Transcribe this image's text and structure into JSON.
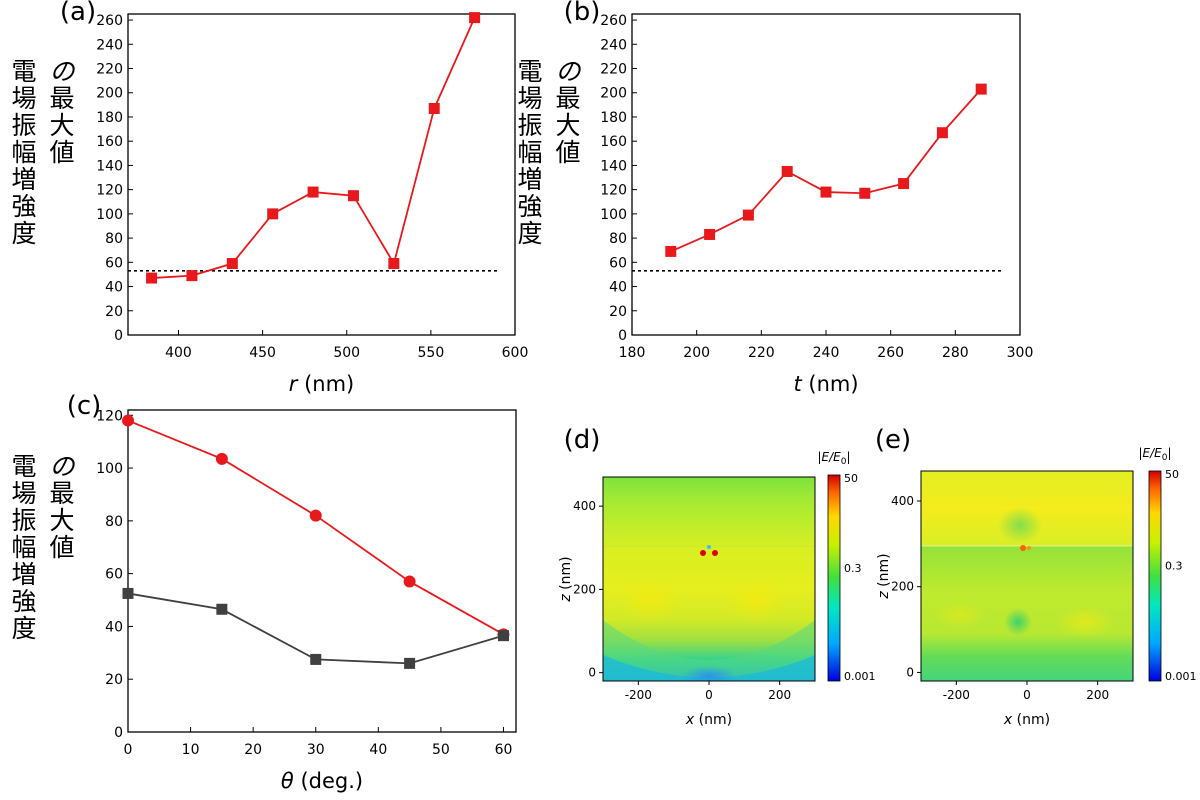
{
  "chart_data": [
    {
      "id": "a",
      "panel_label": "(a)",
      "type": "line",
      "marker": "square",
      "color": "#e8191c",
      "xlabel_var": "r",
      "xlabel_unit": " (nm)",
      "ylabel_lines": [
        "電場振幅増強度",
        "の最大値"
      ],
      "xlim": [
        370,
        600
      ],
      "ylim": [
        0,
        265
      ],
      "xticks": [
        400,
        450,
        500,
        550,
        600
      ],
      "yticks": [
        0,
        20,
        40,
        60,
        80,
        100,
        120,
        140,
        160,
        180,
        200,
        220,
        240,
        260
      ],
      "reference_line": 53,
      "series": [
        {
          "x": [
            384,
            408,
            432,
            456,
            480,
            504,
            528,
            552,
            576
          ],
          "y": [
            47,
            49,
            59,
            100,
            118,
            115,
            59,
            187,
            262
          ]
        }
      ]
    },
    {
      "id": "b",
      "panel_label": "(b)",
      "type": "line",
      "marker": "square",
      "color": "#e8191c",
      "xlabel_var": "t",
      "xlabel_unit": " (nm)",
      "ylabel_lines": [
        "電場振幅増強度",
        "の最大値"
      ],
      "xlim": [
        180,
        300
      ],
      "ylim": [
        0,
        265
      ],
      "xticks": [
        180,
        200,
        220,
        240,
        260,
        280,
        300
      ],
      "yticks": [
        0,
        20,
        40,
        60,
        80,
        100,
        120,
        140,
        160,
        180,
        200,
        220,
        240,
        260
      ],
      "reference_line": 53,
      "series": [
        {
          "x": [
            192,
            204,
            216,
            228,
            240,
            252,
            264,
            276,
            288
          ],
          "y": [
            69,
            83,
            99,
            135,
            118,
            117,
            125,
            167,
            203
          ]
        }
      ]
    },
    {
      "id": "c",
      "panel_label": "(c)",
      "type": "line",
      "xlabel_var": "θ",
      "xlabel_unit": " (deg.)",
      "ylabel_lines": [
        "電場振幅増強度",
        "の最大値"
      ],
      "xlim": [
        0,
        62
      ],
      "ylim": [
        0,
        122
      ],
      "xticks": [
        0,
        10,
        20,
        30,
        40,
        50,
        60
      ],
      "yticks": [
        0,
        20,
        40,
        60,
        80,
        100,
        120
      ],
      "series": [
        {
          "color": "#e8191c",
          "marker": "circle",
          "x": [
            0,
            15,
            30,
            45,
            60
          ],
          "y": [
            118,
            103.5,
            82,
            57,
            37
          ]
        },
        {
          "color": "#404040",
          "marker": "square",
          "x": [
            0,
            15,
            30,
            45,
            60
          ],
          "y": [
            52.5,
            46.5,
            27.5,
            26,
            36.5
          ]
        }
      ]
    },
    {
      "id": "d",
      "panel_label": "(d)",
      "type": "heatmap",
      "xlabel_var": "x",
      "xlabel_unit": " (nm)",
      "ylabel_var": "z",
      "ylabel_unit": " (nm)",
      "xticks": [
        -200,
        0,
        200
      ],
      "yticks": [
        0,
        200,
        400
      ],
      "colorbar_title": "|E/E0|",
      "colorbar_ticks": [
        "50",
        "0.3",
        "0.001"
      ]
    },
    {
      "id": "e",
      "panel_label": "(e)",
      "type": "heatmap",
      "xlabel_var": "x",
      "xlabel_unit": " (nm)",
      "ylabel_var": "z",
      "ylabel_unit": " (nm)",
      "xticks": [
        -200,
        0,
        200
      ],
      "yticks": [
        0,
        200,
        400
      ],
      "colorbar_title": "|E/E0|",
      "colorbar_ticks": [
        "50",
        "0.3",
        "0.001"
      ]
    }
  ]
}
